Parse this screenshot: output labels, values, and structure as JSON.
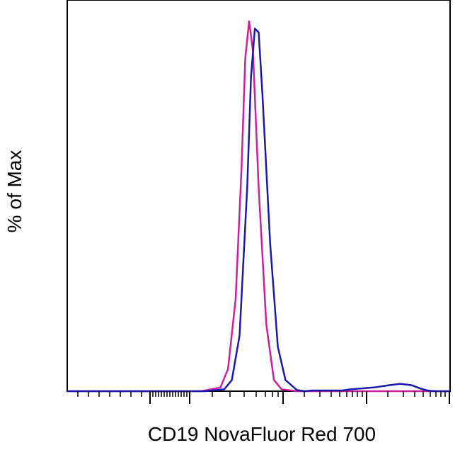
{
  "chart_data": {
    "type": "line",
    "title": "",
    "xlabel": "CD19 NovaFluor Red 700",
    "ylabel": "% of Max",
    "x_scale": "biexponential",
    "x_tick_labels_shown": false,
    "y_tick_labels_shown": false,
    "grid": false,
    "legend": "none",
    "ylim": [
      0,
      100
    ],
    "series": [
      {
        "color": "#cc1f9e",
        "points": [
          [
            0.0,
            0
          ],
          [
            0.35,
            0
          ],
          [
            0.4,
            1
          ],
          [
            0.42,
            6
          ],
          [
            0.44,
            25
          ],
          [
            0.455,
            60
          ],
          [
            0.465,
            90
          ],
          [
            0.475,
            100
          ],
          [
            0.485,
            92
          ],
          [
            0.5,
            55
          ],
          [
            0.52,
            18
          ],
          [
            0.54,
            3
          ],
          [
            0.56,
            0.5
          ],
          [
            0.6,
            0
          ],
          [
            1.0,
            0
          ]
        ]
      },
      {
        "color": "#1a1aa8",
        "points": [
          [
            0.0,
            0
          ],
          [
            0.36,
            0
          ],
          [
            0.41,
            0.5
          ],
          [
            0.43,
            3
          ],
          [
            0.45,
            15
          ],
          [
            0.47,
            55
          ],
          [
            0.48,
            85
          ],
          [
            0.49,
            98
          ],
          [
            0.5,
            97
          ],
          [
            0.51,
            80
          ],
          [
            0.53,
            40
          ],
          [
            0.55,
            12
          ],
          [
            0.57,
            3
          ],
          [
            0.6,
            0.3
          ],
          [
            0.62,
            0
          ],
          [
            0.64,
            0.2
          ],
          [
            0.72,
            0.2
          ],
          [
            0.74,
            0.5
          ],
          [
            0.8,
            1
          ],
          [
            0.84,
            1.6
          ],
          [
            0.87,
            2
          ],
          [
            0.9,
            1.6
          ],
          [
            0.92,
            0.8
          ],
          [
            0.94,
            0.2
          ],
          [
            0.96,
            0
          ],
          [
            1.0,
            0
          ]
        ]
      }
    ]
  }
}
